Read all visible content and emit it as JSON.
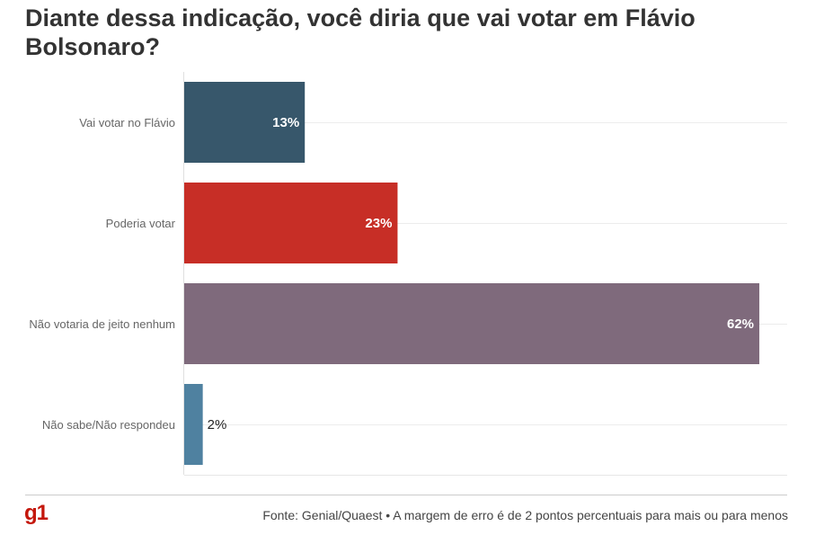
{
  "chart_data": {
    "type": "bar",
    "orientation": "horizontal",
    "title": "Diante dessa indicação, você diria que vai votar em Flávio Bolsonaro?",
    "categories": [
      "Vai votar no Flávio",
      "Poderia votar",
      "Não votaria de jeito nenhum",
      "Não sabe/Não respondeu"
    ],
    "values": [
      13,
      23,
      62,
      2
    ],
    "value_labels": [
      "13%",
      "23%",
      "62%",
      "2%"
    ],
    "colors": [
      "#37576b",
      "#c72e26",
      "#7f6a7c",
      "#4f81a0"
    ],
    "xlim": [
      0,
      65
    ],
    "grid": true,
    "legend": "none"
  },
  "footer": {
    "logo": "g1",
    "source": "Fonte: Genial/Quaest • A margem de erro é de 2 pontos percentuais para mais ou para menos"
  }
}
